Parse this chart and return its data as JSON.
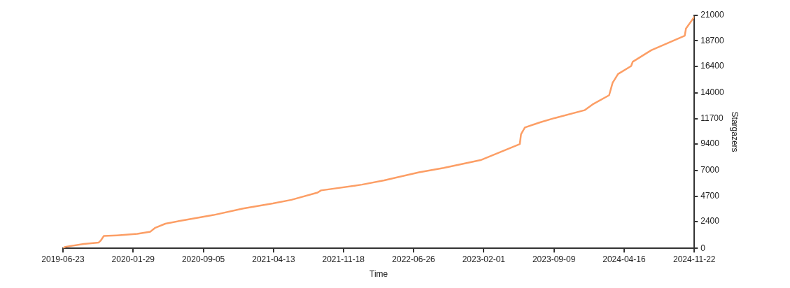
{
  "chart_data": {
    "type": "line",
    "xlabel": "Time",
    "ylabel": "Stargazers",
    "x": [
      "2019-06-23",
      "2019-06-30",
      "2019-08-27",
      "2019-10-13",
      "2019-10-20",
      "2019-10-29",
      "2019-12-10",
      "2020-02-11",
      "2020-03-23",
      "2020-04-06",
      "2020-05-09",
      "2020-07-06",
      "2020-10-07",
      "2021-01-08",
      "2021-04-11",
      "2021-06-08",
      "2021-08-29",
      "2021-09-09",
      "2022-01-15",
      "2022-03-26",
      "2022-07-13",
      "2022-09-28",
      "2023-01-22",
      "2023-05-25",
      "2023-05-29",
      "2023-06-10",
      "2023-07-26",
      "2023-09-11",
      "2023-12-14",
      "2024-01-08",
      "2024-02-29",
      "2024-03-11",
      "2024-03-28",
      "2024-05-08",
      "2024-05-13",
      "2024-07-10",
      "2024-10-23",
      "2024-10-27",
      "2024-11-22"
    ],
    "series": [
      {
        "color": "#fc9e65",
        "values": [
          0,
          130,
          390,
          520,
          720,
          1110,
          1170,
          1300,
          1500,
          1830,
          2220,
          2540,
          3000,
          3590,
          4040,
          4370,
          5020,
          5220,
          5740,
          6130,
          6850,
          7240,
          7950,
          9390,
          10300,
          10890,
          11340,
          11740,
          12450,
          12970,
          13800,
          14930,
          15710,
          16430,
          16820,
          17860,
          19170,
          19820,
          20860
        ]
      }
    ],
    "xlim": [
      "2019-06-23",
      "2024-11-22"
    ],
    "xticks": [
      "2019-06-23",
      "2020-01-29",
      "2020-09-05",
      "2021-04-13",
      "2021-11-18",
      "2022-06-26",
      "2023-02-01",
      "2023-09-09",
      "2024-04-16",
      "2024-11-22"
    ],
    "ylim": [
      0,
      21000
    ],
    "yticks": [
      0,
      2400,
      4700,
      7000,
      9400,
      11700,
      14000,
      16400,
      18700,
      21000
    ],
    "grid": false,
    "legend": false,
    "marker": "none",
    "line_style": "solid"
  }
}
